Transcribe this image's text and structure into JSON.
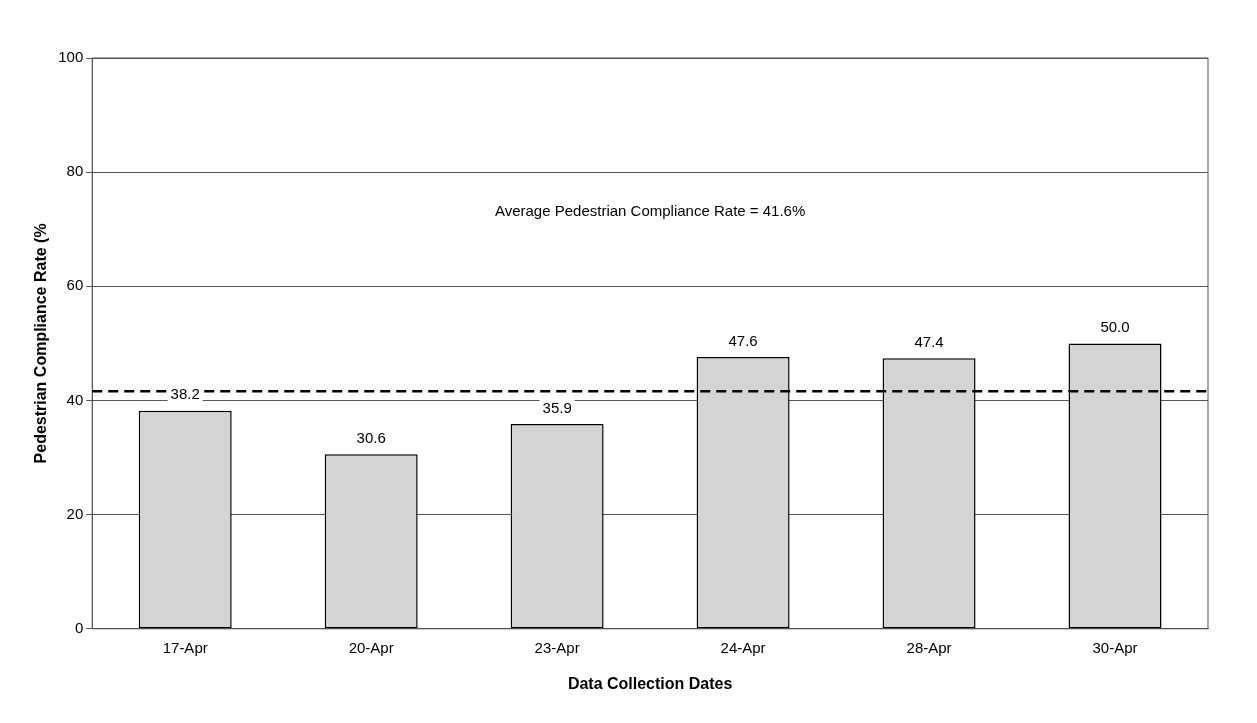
{
  "chart_data": {
    "type": "bar",
    "xlabel": "Data Collection Dates",
    "ylabel": "Pedestrian Compliance Rate (%",
    "categories": [
      "17-Apr",
      "20-Apr",
      "23-Apr",
      "24-Apr",
      "28-Apr",
      "30-Apr"
    ],
    "values": [
      38.2,
      30.6,
      35.9,
      47.6,
      47.4,
      50.0
    ],
    "value_labels": [
      "38.2",
      "30.6",
      "35.9",
      "47.6",
      "47.4",
      "50.0"
    ],
    "color": "#d4d4d4",
    "ylim": [
      0,
      100
    ],
    "yticks": [
      0,
      20,
      40,
      60,
      80,
      100
    ],
    "grid": "y",
    "ref_lines": [
      {
        "axis": "y",
        "value": 41.6,
        "color": "#000000",
        "line_style": "dashed"
      }
    ],
    "annotations": [
      "Average Pedestrian Compliance Rate = 41.6%"
    ]
  }
}
